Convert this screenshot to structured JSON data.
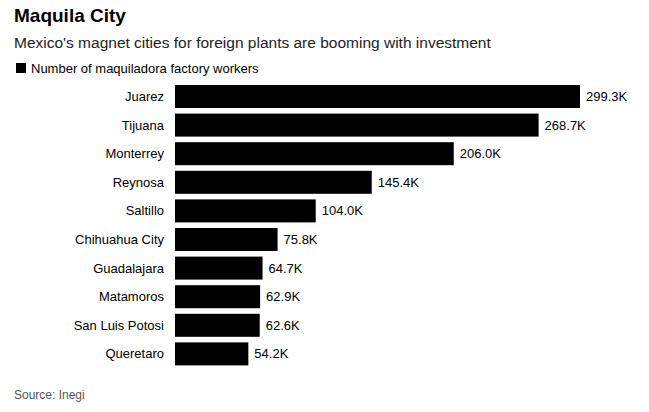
{
  "chart_data": {
    "type": "bar",
    "orientation": "horizontal",
    "title": "Maquila City",
    "subtitle": "Mexico's magnet cities for foreign plants are booming with investment",
    "source": "Source: Inegi",
    "categories": [
      "Juarez",
      "Tijuana",
      "Monterrey",
      "Reynosa",
      "Saltillo",
      "Chihuahua City",
      "Guadalajara",
      "Matamoros",
      "San Luis Potosi",
      "Queretaro"
    ],
    "series": [
      {
        "name": "Number of maquiladora factory workers",
        "color": "#000000",
        "values": [
          299.3,
          268.7,
          206.0,
          145.4,
          104.0,
          75.8,
          64.7,
          62.9,
          62.6,
          54.2
        ],
        "value_labels": [
          "299.3K",
          "268.7K",
          "206.0K",
          "145.4K",
          "104.0K",
          "75.8K",
          "64.7K",
          "62.9K",
          "62.6K",
          "54.2K"
        ]
      }
    ],
    "xlim": [
      0,
      299.3
    ],
    "legend": "top-left",
    "data_labels": true,
    "tick_labels": "y",
    "grid": false
  }
}
